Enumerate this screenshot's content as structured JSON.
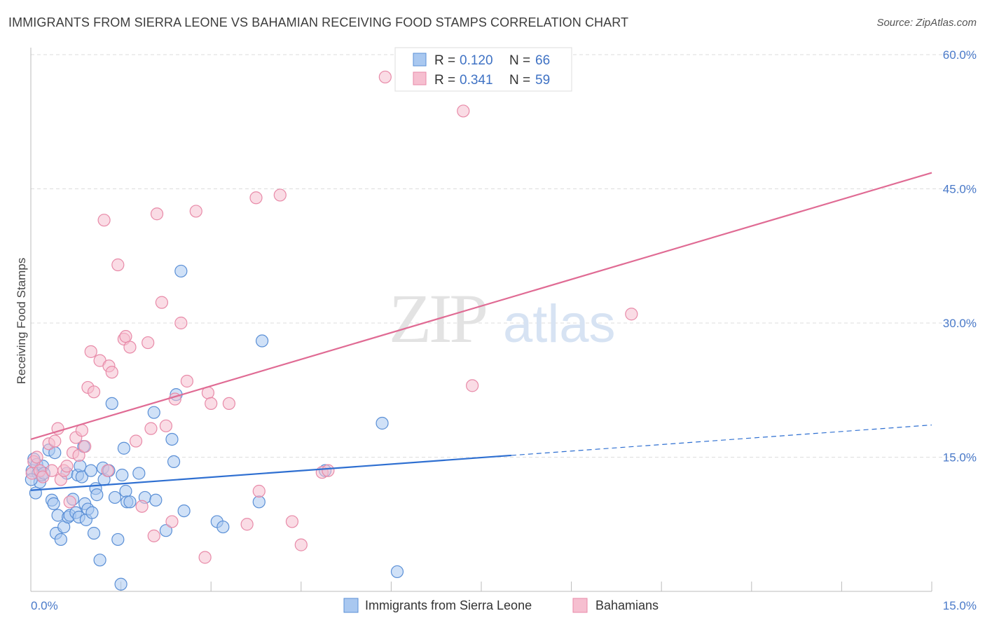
{
  "title": "IMMIGRANTS FROM SIERRA LEONE VS BAHAMIAN RECEIVING FOOD STAMPS CORRELATION CHART",
  "source": "Source: ZipAtlas.com",
  "watermark": {
    "zip": "ZIP",
    "atlas": "atlas"
  },
  "colors": {
    "blue_fill": "#a9c8f0",
    "blue_stroke": "#5a8fd6",
    "blue_line": "#2e6fd1",
    "pink_fill": "#f6bfd0",
    "pink_stroke": "#e88aa8",
    "pink_line": "#e06b94",
    "tick": "#4a7ac9",
    "grid": "#dddddd"
  },
  "legend": {
    "r_label": "R =",
    "n_label": "N =",
    "rows": [
      {
        "r": "0.120",
        "n": "66"
      },
      {
        "r": "0.341",
        "n": "59"
      }
    ]
  },
  "bottom_legend": [
    "Immigrants from Sierra Leone",
    "Bahamians"
  ],
  "chart_data": {
    "type": "scatter",
    "title": "IMMIGRANTS FROM SIERRA LEONE VS BAHAMIAN RECEIVING FOOD STAMPS CORRELATION CHART",
    "xlabel": "",
    "ylabel": "Receiving Food Stamps",
    "xlim": [
      0,
      15
    ],
    "ylim": [
      0,
      60
    ],
    "x_tick_labels": [
      "0.0%",
      "15.0%"
    ],
    "y_ticks": [
      15,
      30,
      45,
      60
    ],
    "y_tick_labels": [
      "15.0%",
      "30.0%",
      "45.0%",
      "60.0%"
    ],
    "grid": true,
    "legend_position": "top-center",
    "series": [
      {
        "name": "Immigrants from Sierra Leone",
        "r": 0.12,
        "n": 66,
        "trend": {
          "x0": 0,
          "y0": 11.3,
          "x1": 8.0,
          "y1": 15.2,
          "dashed_to_x": 15,
          "dashed_to_y": 18.6
        },
        "points": [
          [
            0.02,
            13.5
          ],
          [
            0.05,
            14.8
          ],
          [
            0.08,
            11.0
          ],
          [
            0.1,
            14.2
          ],
          [
            0.12,
            13.2
          ],
          [
            0.15,
            12.2
          ],
          [
            0.18,
            13.0
          ],
          [
            0.2,
            14.0
          ],
          [
            0.22,
            13.2
          ],
          [
            0.3,
            15.8
          ],
          [
            0.35,
            10.2
          ],
          [
            0.38,
            9.8
          ],
          [
            0.4,
            15.5
          ],
          [
            0.42,
            6.5
          ],
          [
            0.45,
            8.5
          ],
          [
            0.5,
            5.8
          ],
          [
            0.55,
            7.2
          ],
          [
            0.6,
            13.2
          ],
          [
            0.62,
            8.3
          ],
          [
            0.65,
            8.5
          ],
          [
            0.7,
            10.3
          ],
          [
            0.75,
            8.8
          ],
          [
            0.78,
            13.0
          ],
          [
            0.8,
            8.3
          ],
          [
            0.82,
            14.0
          ],
          [
            0.85,
            12.8
          ],
          [
            0.88,
            16.2
          ],
          [
            0.9,
            9.8
          ],
          [
            0.92,
            8.0
          ],
          [
            0.95,
            9.2
          ],
          [
            1.0,
            13.5
          ],
          [
            1.02,
            8.8
          ],
          [
            1.05,
            6.5
          ],
          [
            1.08,
            11.5
          ],
          [
            1.1,
            10.8
          ],
          [
            1.15,
            3.5
          ],
          [
            1.2,
            13.8
          ],
          [
            1.22,
            12.5
          ],
          [
            1.3,
            13.5
          ],
          [
            1.35,
            21.0
          ],
          [
            1.4,
            10.5
          ],
          [
            1.45,
            5.8
          ],
          [
            1.5,
            0.8
          ],
          [
            1.52,
            13.0
          ],
          [
            1.55,
            16.0
          ],
          [
            1.58,
            11.2
          ],
          [
            1.6,
            10.0
          ],
          [
            1.65,
            10.0
          ],
          [
            1.8,
            13.2
          ],
          [
            1.9,
            10.5
          ],
          [
            2.05,
            20.0
          ],
          [
            2.08,
            10.2
          ],
          [
            2.25,
            6.8
          ],
          [
            2.35,
            17.0
          ],
          [
            2.38,
            14.5
          ],
          [
            2.42,
            22.0
          ],
          [
            2.5,
            35.8
          ],
          [
            2.55,
            9.0
          ],
          [
            3.1,
            7.8
          ],
          [
            3.2,
            7.2
          ],
          [
            3.8,
            10.0
          ],
          [
            3.85,
            28.0
          ],
          [
            4.9,
            13.5
          ],
          [
            5.85,
            18.8
          ],
          [
            6.1,
            2.2
          ],
          [
            0.01,
            12.5
          ]
        ]
      },
      {
        "name": "Bahamians",
        "r": 0.341,
        "n": 59,
        "trend": {
          "x0": 0,
          "y0": 17.0,
          "x1": 15,
          "y1": 46.8
        },
        "points": [
          [
            0.02,
            13.2
          ],
          [
            0.05,
            14.5
          ],
          [
            0.1,
            15.0
          ],
          [
            0.15,
            13.5
          ],
          [
            0.2,
            12.8
          ],
          [
            0.3,
            16.5
          ],
          [
            0.35,
            13.5
          ],
          [
            0.4,
            16.8
          ],
          [
            0.45,
            18.2
          ],
          [
            0.5,
            12.5
          ],
          [
            0.55,
            13.5
          ],
          [
            0.6,
            14.0
          ],
          [
            0.65,
            10.0
          ],
          [
            0.7,
            15.5
          ],
          [
            0.75,
            17.2
          ],
          [
            0.8,
            15.2
          ],
          [
            0.85,
            18.0
          ],
          [
            0.9,
            16.2
          ],
          [
            0.95,
            22.8
          ],
          [
            1.0,
            26.8
          ],
          [
            1.05,
            22.3
          ],
          [
            1.15,
            25.8
          ],
          [
            1.22,
            41.5
          ],
          [
            1.28,
            13.5
          ],
          [
            1.3,
            25.2
          ],
          [
            1.35,
            24.5
          ],
          [
            1.45,
            36.5
          ],
          [
            1.55,
            28.2
          ],
          [
            1.58,
            28.5
          ],
          [
            1.65,
            27.3
          ],
          [
            1.75,
            16.8
          ],
          [
            1.85,
            9.5
          ],
          [
            1.95,
            27.8
          ],
          [
            2.0,
            18.2
          ],
          [
            2.05,
            6.2
          ],
          [
            2.1,
            42.2
          ],
          [
            2.18,
            32.3
          ],
          [
            2.25,
            18.5
          ],
          [
            2.35,
            7.8
          ],
          [
            2.4,
            21.5
          ],
          [
            2.5,
            30.0
          ],
          [
            2.6,
            23.5
          ],
          [
            2.75,
            42.5
          ],
          [
            2.9,
            3.8
          ],
          [
            2.95,
            22.2
          ],
          [
            3.0,
            21.0
          ],
          [
            3.3,
            21.0
          ],
          [
            3.6,
            7.5
          ],
          [
            3.75,
            44.0
          ],
          [
            3.8,
            11.2
          ],
          [
            4.15,
            44.3
          ],
          [
            4.35,
            7.8
          ],
          [
            4.5,
            5.2
          ],
          [
            4.85,
            13.3
          ],
          [
            4.95,
            13.5
          ],
          [
            5.9,
            57.5
          ],
          [
            7.2,
            53.7
          ],
          [
            7.35,
            23.0
          ],
          [
            10.0,
            31.0
          ]
        ]
      }
    ]
  }
}
